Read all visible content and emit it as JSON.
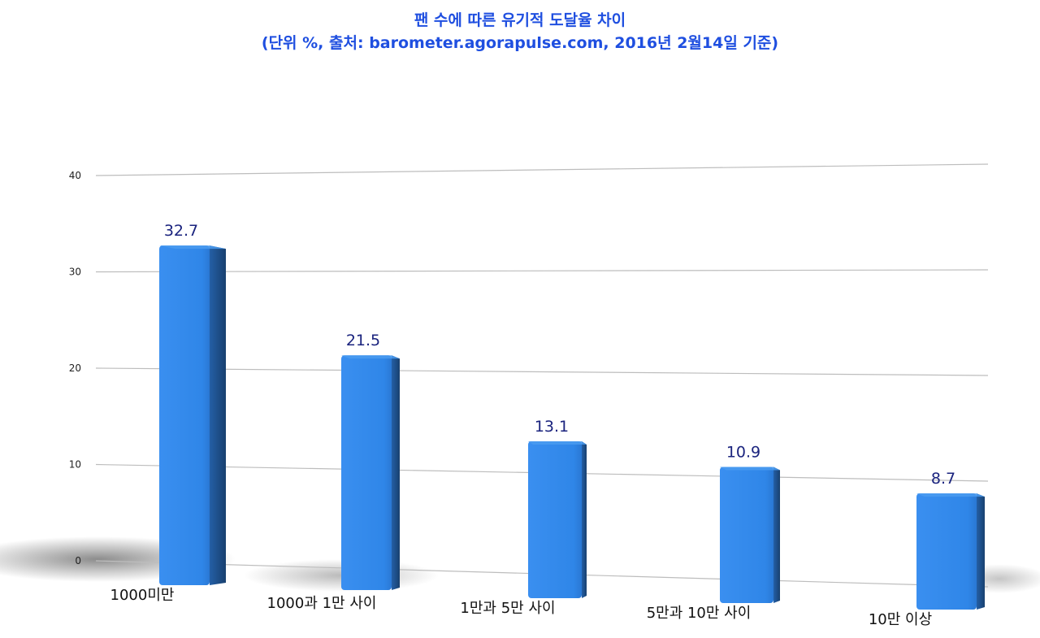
{
  "chart_data": {
    "type": "bar",
    "title": "팬 수에 따른 유기적 도달율 차이",
    "subtitle": "(단위 %, 출처: barometer.agorapulse.com, 2016년 2월14일 기준)",
    "categories": [
      "1000미만",
      "1000과 1만 사이",
      "1만과 5만 사이",
      "5만과 10만 사이",
      "10만 이상"
    ],
    "values": [
      32.7,
      21.5,
      13.1,
      10.9,
      8.7
    ],
    "value_labels": [
      "32.7",
      "21.5",
      "13.1",
      "10.9",
      "8.7"
    ],
    "y_ticks": [
      0,
      10,
      20,
      30,
      40
    ],
    "y_tick_labels": [
      "0",
      "10",
      "20",
      "30",
      "40"
    ],
    "ylim": [
      0,
      40
    ],
    "grid": true,
    "legend": "none",
    "colors": {
      "bar_front": "#2f86e8",
      "bar_side": "#1c4f8f",
      "bar_top": "#4a9bf0",
      "title": "#1f4fe0",
      "data_label": "#1a237e",
      "grid": "#bdbdbd"
    }
  }
}
